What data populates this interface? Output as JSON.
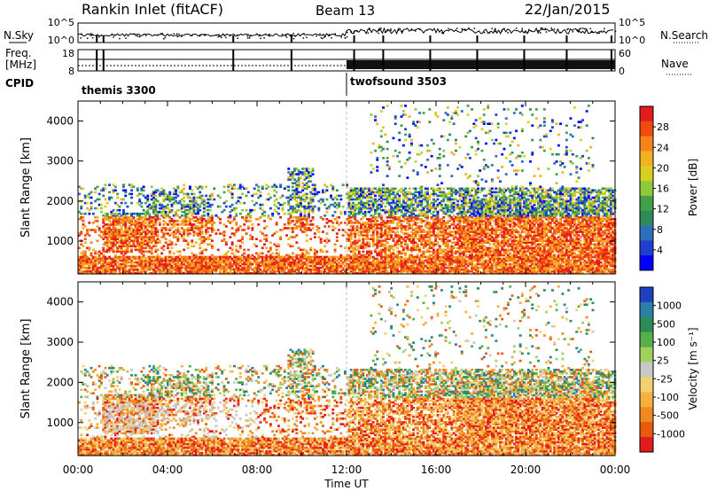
{
  "header": {
    "title": "Rankin Inlet (fitACF)",
    "beam": "Beam 13",
    "date": "22/Jan/2015"
  },
  "status_panels": {
    "nsky_label": "N.Sky",
    "nsearch_label": "N.Search",
    "freq_label_line1": "Freq.",
    "freq_label_line2": "[MHz]",
    "nave_label": "Nave",
    "cpid_label": "CPID",
    "noise_ticks": [
      "10^5",
      "10^0"
    ],
    "freq_ticks": [
      "8",
      "18"
    ],
    "nave_ticks": [
      "60",
      "0"
    ],
    "cpid_modes": [
      {
        "name": "themis 3300",
        "start_hour": 0
      },
      {
        "name": "twofsound 3503",
        "start_hour": 12
      }
    ]
  },
  "chart_data": [
    {
      "type": "heatmap",
      "name": "power",
      "ylabel": "Slant Range [km]",
      "xlabel": "",
      "xlim": [
        0,
        24
      ],
      "ylim": [
        180,
        4500
      ],
      "yticks": [
        "1000",
        "2000",
        "3000",
        "4000"
      ],
      "colorbar": {
        "label": "Power [dB]",
        "ticks": [
          "28",
          "24",
          "20",
          "16",
          "12",
          "8",
          "4"
        ],
        "colors": [
          "#e41a1c",
          "#f04a10",
          "#f6841c",
          "#f2b022",
          "#d8d020",
          "#8fc93a",
          "#43a047",
          "#2e8b57",
          "#2c6fba",
          "#1f3fd0",
          "#0000ff"
        ]
      }
    },
    {
      "type": "heatmap",
      "name": "velocity",
      "ylabel": "Slant Range [km]",
      "xlabel": "Time UT",
      "xlim": [
        0,
        24
      ],
      "ylim": [
        180,
        4500
      ],
      "yticks": [
        "1000",
        "2000",
        "3000",
        "4000"
      ],
      "xticks": [
        "00:00",
        "04:00",
        "08:00",
        "12:00",
        "16:00",
        "20:00",
        "00:00"
      ],
      "colorbar": {
        "label": "Velocity [m s⁻¹]",
        "ticks": [
          "1000",
          "500",
          "100",
          "25",
          "-25",
          "-100",
          "-500",
          "-1000"
        ],
        "colors": [
          "#2040c0",
          "#2a7fa8",
          "#2e8b57",
          "#56b04a",
          "#a0d060",
          "#c8c8c8",
          "#f0d070",
          "#f5b040",
          "#f08a20",
          "#e85a10",
          "#e41a1c"
        ]
      }
    }
  ]
}
